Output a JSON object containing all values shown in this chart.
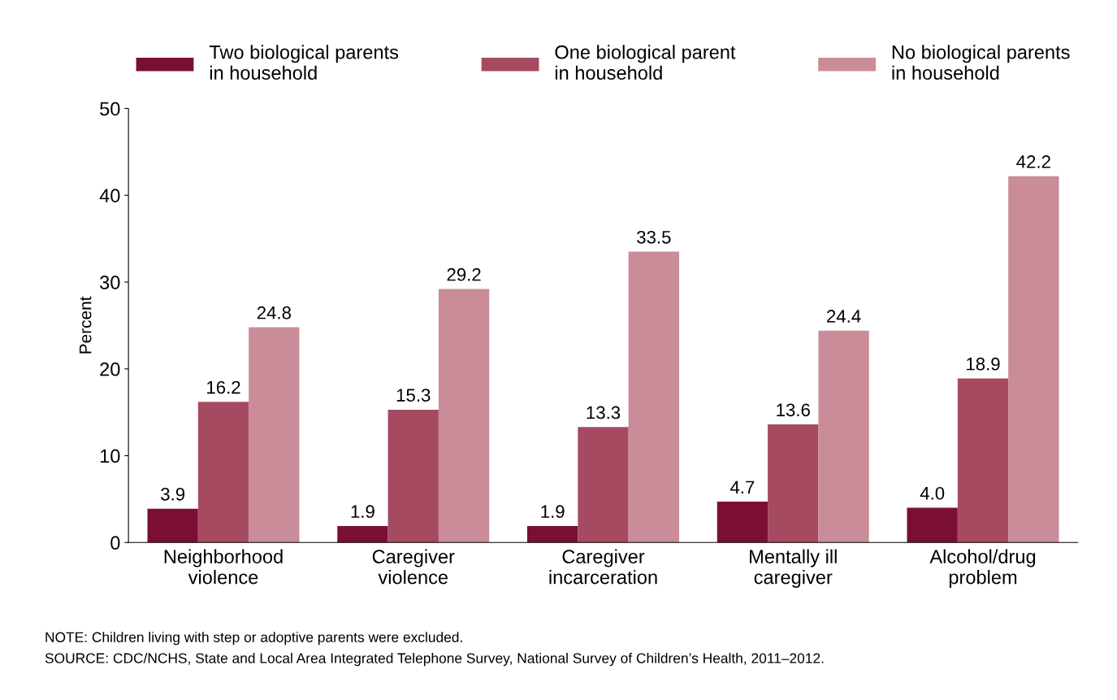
{
  "chart_data": {
    "type": "bar",
    "ylabel": "Percent",
    "categories": [
      "Neighborhood\nviolence",
      "Caregiver\nviolence",
      "Caregiver\nincarceration",
      "Mentally ill\ncaregiver",
      "Alcohol/drug\nproblem"
    ],
    "series": [
      {
        "name": "Two biological parents\nin household",
        "color": "#7b0f33",
        "values": [
          3.9,
          1.9,
          1.9,
          4.7,
          4.0
        ],
        "value_labels": [
          "3.9",
          "1.9",
          "1.9",
          "4.7",
          "4.0"
        ]
      },
      {
        "name": "One biological parent\nin household",
        "color": "#a64a62",
        "values": [
          16.2,
          15.3,
          13.3,
          13.6,
          18.9
        ]
      },
      {
        "name": "No biological parents\nin household",
        "color": "#c98c98",
        "values": [
          24.8,
          29.2,
          33.5,
          24.4,
          42.2
        ]
      }
    ],
    "ylim": [
      0,
      50
    ],
    "yticks": [
      0,
      10,
      20,
      30,
      40,
      50
    ],
    "grid": false,
    "legend": "top",
    "data_labels": true,
    "annotations": [
      "NOTE: Children living with step or adoptive parents were excluded.",
      "SOURCE: CDC/NCHS, State and Local Area Integrated Telephone Survey, National Survey of Children’s Health, 2011–2012."
    ]
  }
}
